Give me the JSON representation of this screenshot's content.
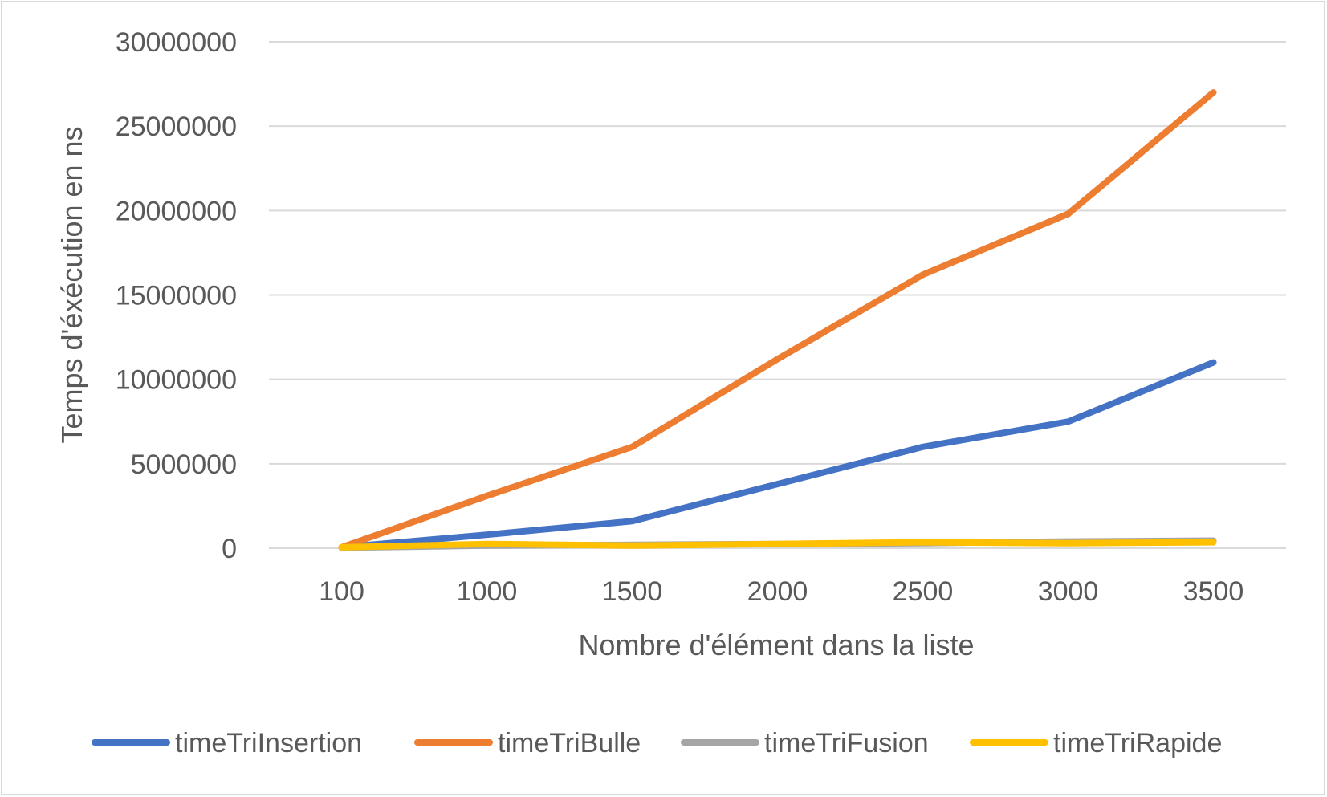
{
  "chart_data": {
    "type": "line",
    "title": "",
    "xlabel": "Nombre d'élément dans la liste",
    "ylabel": "Temps d'éxécution en ns",
    "categories": [
      "100",
      "1000",
      "1500",
      "2000",
      "2500",
      "3000",
      "3500"
    ],
    "ylim": [
      0,
      30000000
    ],
    "yticks": [
      0,
      5000000,
      10000000,
      15000000,
      20000000,
      25000000,
      30000000
    ],
    "ytick_labels": [
      "0",
      "5000000",
      "10000000",
      "15000000",
      "20000000",
      "25000000",
      "30000000"
    ],
    "grid": true,
    "legend_position": "bottom",
    "series": [
      {
        "name": "timeTriInsertion",
        "color": "#4472C4",
        "values": [
          50000,
          800000,
          1600000,
          3800000,
          6000000,
          7500000,
          11000000
        ]
      },
      {
        "name": "timeTriBulle",
        "color": "#ED7D31",
        "values": [
          50000,
          3100000,
          6000000,
          11200000,
          16200000,
          19800000,
          27000000
        ]
      },
      {
        "name": "timeTriFusion",
        "color": "#A5A5A5",
        "values": [
          30000,
          150000,
          200000,
          250000,
          300000,
          400000,
          450000
        ]
      },
      {
        "name": "timeTriRapide",
        "color": "#FFC000",
        "values": [
          50000,
          250000,
          150000,
          250000,
          350000,
          300000,
          350000
        ]
      }
    ]
  }
}
